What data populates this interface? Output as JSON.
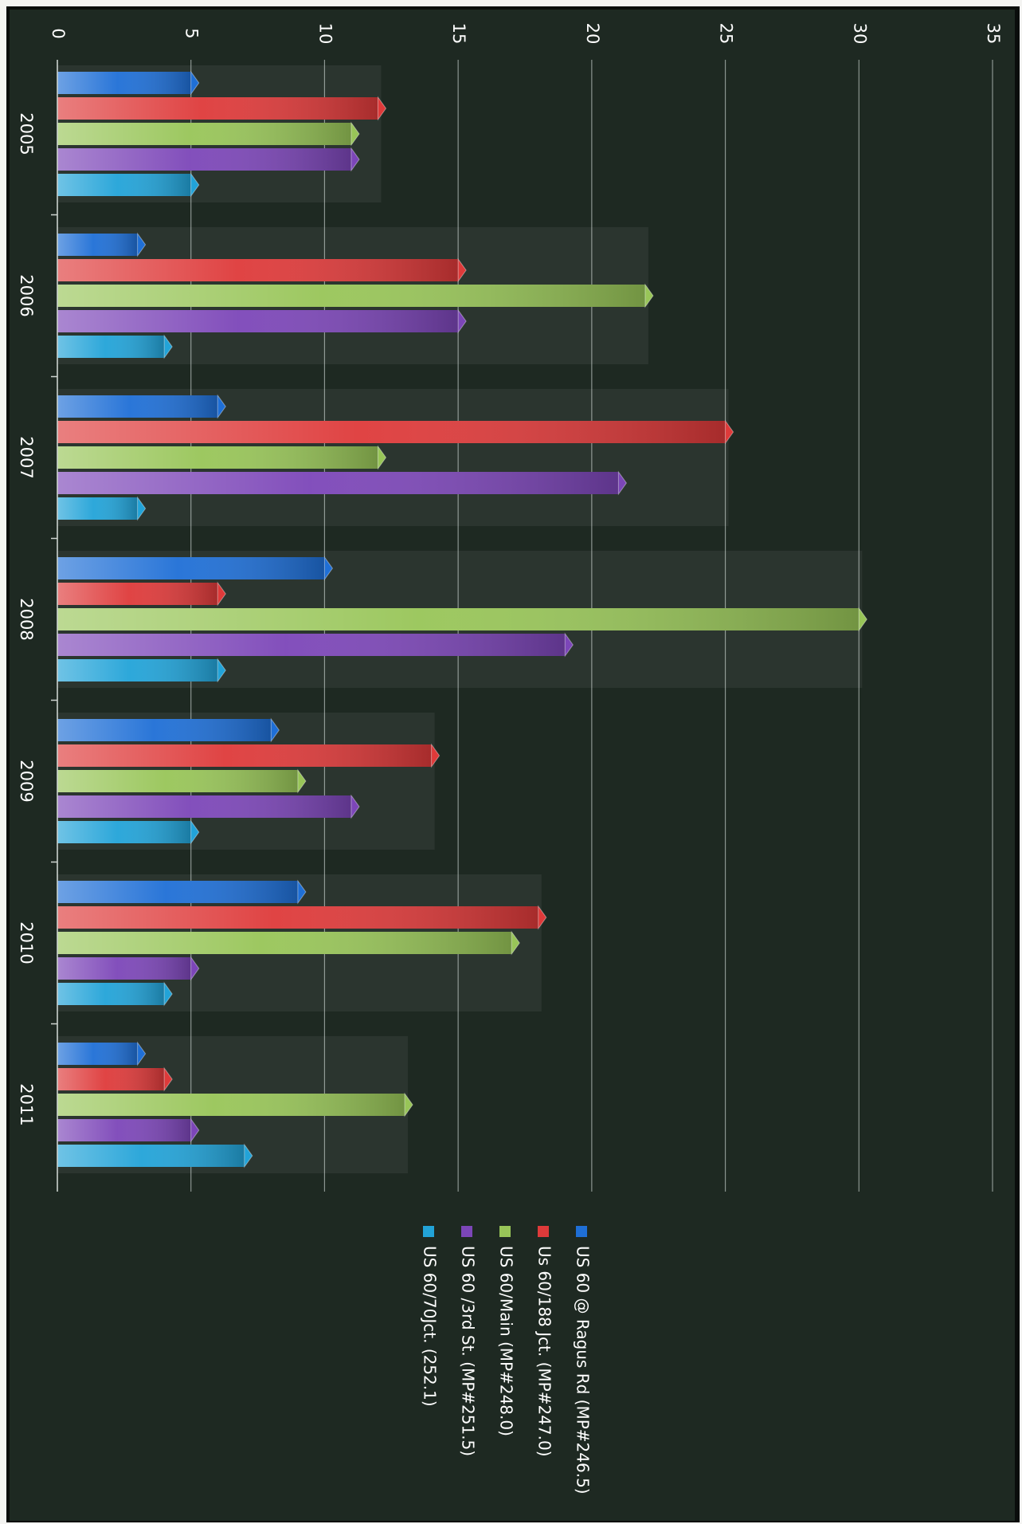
{
  "chart_data": {
    "type": "bar",
    "orientation": "horizontal",
    "rotated": "90deg clockwise",
    "categories": [
      "2005",
      "2006",
      "2007",
      "2008",
      "2009",
      "2010",
      "2011"
    ],
    "xlim": [
      0,
      35
    ],
    "ticks": [
      0,
      5,
      10,
      15,
      20,
      25,
      30,
      35
    ],
    "grid": true,
    "legend_position": "right",
    "series": [
      {
        "name": "US 60 @ Ragus Rd (MP#246.5)",
        "color": "#1f6fd6",
        "values": [
          5,
          3,
          6,
          10,
          8,
          9,
          3
        ]
      },
      {
        "name": "Us 60/188 Jct. (MP#247.0)",
        "color": "#de3a3a",
        "values": [
          12,
          15,
          25,
          6,
          14,
          18,
          4
        ]
      },
      {
        "name": "US 60/Main (MP#248.0)",
        "color": "#98c558",
        "values": [
          11,
          22,
          12,
          30,
          9,
          17,
          13
        ]
      },
      {
        "name": "US 60 /3rd St. (MP#251.5)",
        "color": "#7c46b8",
        "values": [
          11,
          15,
          21,
          19,
          11,
          5,
          5
        ]
      },
      {
        "name": "US 60/70Jct. (252.1)",
        "color": "#22a3d8",
        "values": [
          5,
          4,
          3,
          6,
          5,
          4,
          7
        ]
      }
    ]
  }
}
